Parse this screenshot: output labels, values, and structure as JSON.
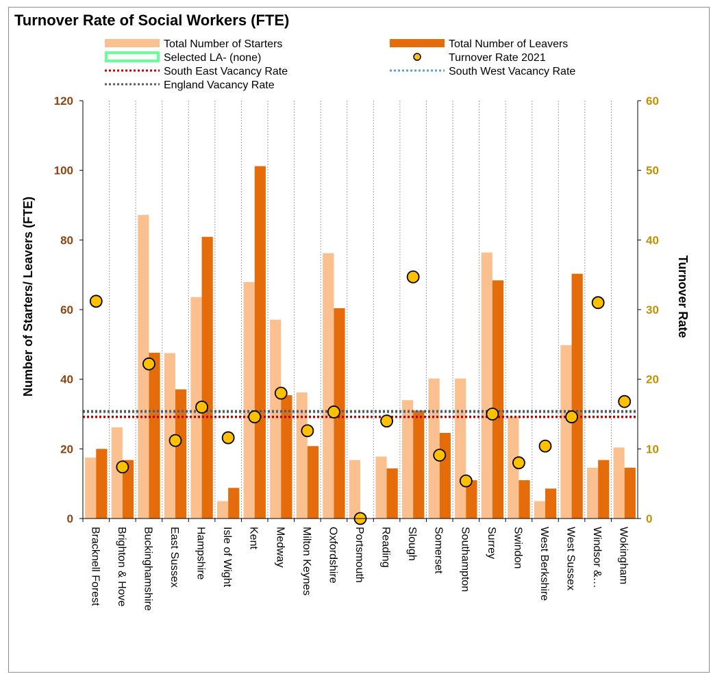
{
  "chart_data": {
    "type": "bar",
    "title": "Turnover Rate of Social Workers (FTE)",
    "ylabel": "Number of Starters/ Leavers (FTE)",
    "y2label": "Turnover Rate",
    "ylim": [
      0,
      120
    ],
    "y2lim": [
      0,
      60
    ],
    "yticks": [
      0,
      20,
      40,
      60,
      80,
      100,
      120
    ],
    "y2ticks": [
      0,
      10,
      20,
      30,
      40,
      50,
      60
    ],
    "grid": "vertical dotted",
    "legend_position": "top",
    "categories": [
      "Bracknell Forest",
      "Brighton & Hove",
      "Buckinghamshire",
      "East Sussex",
      "Hampshire",
      "Isle of Wight",
      "Kent",
      "Medway",
      "Milton Keynes",
      "Oxfordshire",
      "Portsmouth",
      "Reading",
      "Slough",
      "Somerset",
      "Southampton",
      "Surrey",
      "Swindon",
      "West Berkshire",
      "West Sussex",
      "Windsor &…",
      "Wokingham"
    ],
    "series": [
      {
        "name": "Total Number of Starters",
        "type": "bar",
        "axis": "left",
        "color": "#fac090",
        "values": [
          17.5,
          26.2,
          87.2,
          47.5,
          63.6,
          5.0,
          67.9,
          57.1,
          36.2,
          76.2,
          16.8,
          17.8,
          34.0,
          40.2,
          40.2,
          76.4,
          29.2,
          5.0,
          49.8,
          14.6,
          20.4
        ]
      },
      {
        "name": "Total Number of Leavers",
        "type": "bar",
        "axis": "left",
        "color": "#e46c0a",
        "values": [
          20.0,
          16.8,
          47.6,
          37.1,
          80.9,
          8.8,
          101.2,
          35.4,
          20.8,
          60.4,
          0,
          14.4,
          31.0,
          24.6,
          11.0,
          68.4,
          11.0,
          8.6,
          70.3,
          16.8,
          14.6
        ]
      },
      {
        "name": "Turnover  Rate 2021",
        "type": "scatter",
        "axis": "right",
        "color": "#ffc000",
        "values": [
          31.2,
          7.4,
          22.2,
          11.2,
          16.0,
          11.6,
          14.6,
          18.0,
          12.6,
          15.3,
          0.0,
          14.0,
          34.7,
          9.1,
          5.4,
          15.0,
          8.0,
          10.4,
          14.6,
          31.0,
          16.8
        ]
      }
    ],
    "reference_lines": [
      {
        "name": "South East Vacancy Rate",
        "axis": "right",
        "value": 14.6,
        "color": "#c00000"
      },
      {
        "name": "South West Vacancy Rate",
        "axis": "right",
        "value": 15.3,
        "color": "#5b9bd5"
      },
      {
        "name": "England Vacancy Rate",
        "axis": "right",
        "value": 15.4,
        "color": "#595959"
      }
    ],
    "legend": [
      {
        "label": "Total Number of Starters",
        "symbol": "bar",
        "color": "#fac090"
      },
      {
        "label": "Total Number of Leavers",
        "symbol": "bar",
        "color": "#e46c0a"
      },
      {
        "label": "Selected LA- (none)",
        "symbol": "outline",
        "color": "#66ff99"
      },
      {
        "label": "Turnover  Rate 2021",
        "symbol": "circle",
        "color": "#ffc000"
      },
      {
        "label": "South East Vacancy Rate",
        "symbol": "dotted",
        "color": "#c00000"
      },
      {
        "label": "South West Vacancy Rate",
        "symbol": "dotted",
        "color": "#5b9bd5"
      },
      {
        "label": "England Vacancy Rate",
        "symbol": "dotted",
        "color": "#595959"
      }
    ]
  }
}
